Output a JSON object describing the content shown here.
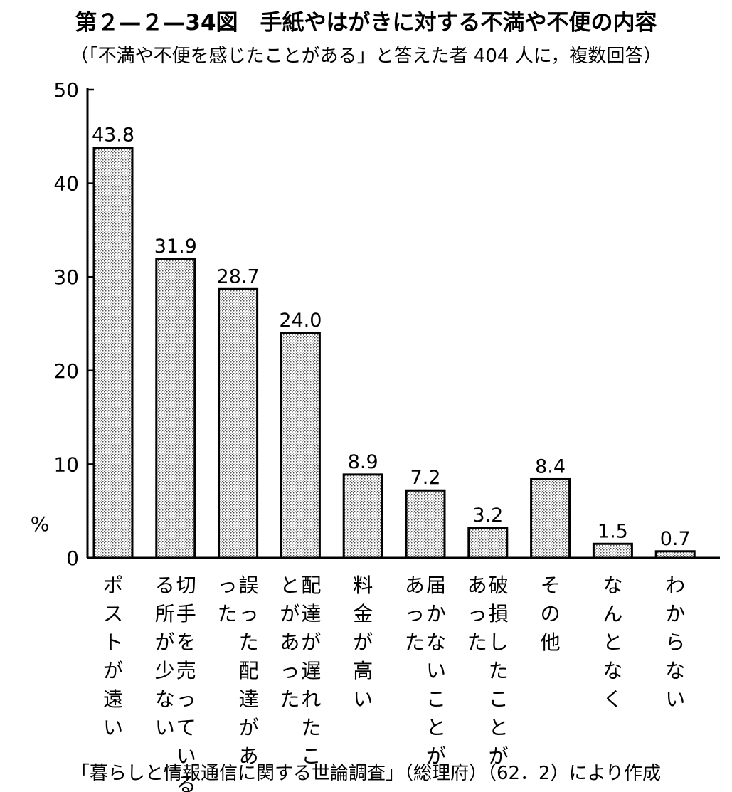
{
  "title": "第２—２—34図　手紙やはがきに対する不満や不便の内容",
  "subtitle": "（「不満や不便を感じたことがある」と答えた者 404 人に，複数回答）",
  "source": "「暮らしと情報通信に関する世論調査」（総理府）（62．2）により作成",
  "chart_data": {
    "type": "bar",
    "title": "第２—２—34図　手紙やはがきに対する不満や不便の内容",
    "subtitle": "（「不満や不便を感じたことがある」と答えた者 404 人に，複数回答）",
    "ylabel": "%",
    "xlabel": "",
    "ylim": [
      0,
      50
    ],
    "yticks": [
      0,
      10,
      20,
      30,
      40,
      50
    ],
    "grid": false,
    "legend": "none",
    "categories": [
      "ポストが遠い",
      "切手を売っている所が少ない",
      "誤った配達があった",
      "配達が遅れたことがあった",
      "料金が高い",
      "届かないことがあった",
      "破損したことがあった",
      "その他",
      "なんとなく",
      "わからない"
    ],
    "category_columns": [
      [
        "ポストが遠い"
      ],
      [
        "切手を売っている",
        "る所が少ない"
      ],
      [
        "誤った配達があ",
        "った"
      ],
      [
        "配達が遅れたこ",
        "とがあった"
      ],
      [
        "料金が高い"
      ],
      [
        "届かないことが",
        "あった"
      ],
      [
        "破損したことが",
        "あった"
      ],
      [
        "その他"
      ],
      [
        "なんとなく"
      ],
      [
        "わからない"
      ]
    ],
    "values": [
      43.8,
      31.9,
      28.7,
      24.0,
      8.9,
      7.2,
      3.2,
      8.4,
      1.5,
      0.7
    ],
    "value_labels": [
      "43.8",
      "31.9",
      "28.7",
      "24.0",
      "8.9",
      "7.2",
      "3.2",
      "8.4",
      "1.5",
      "0.7"
    ],
    "bar_fill": "dotted-gray"
  }
}
